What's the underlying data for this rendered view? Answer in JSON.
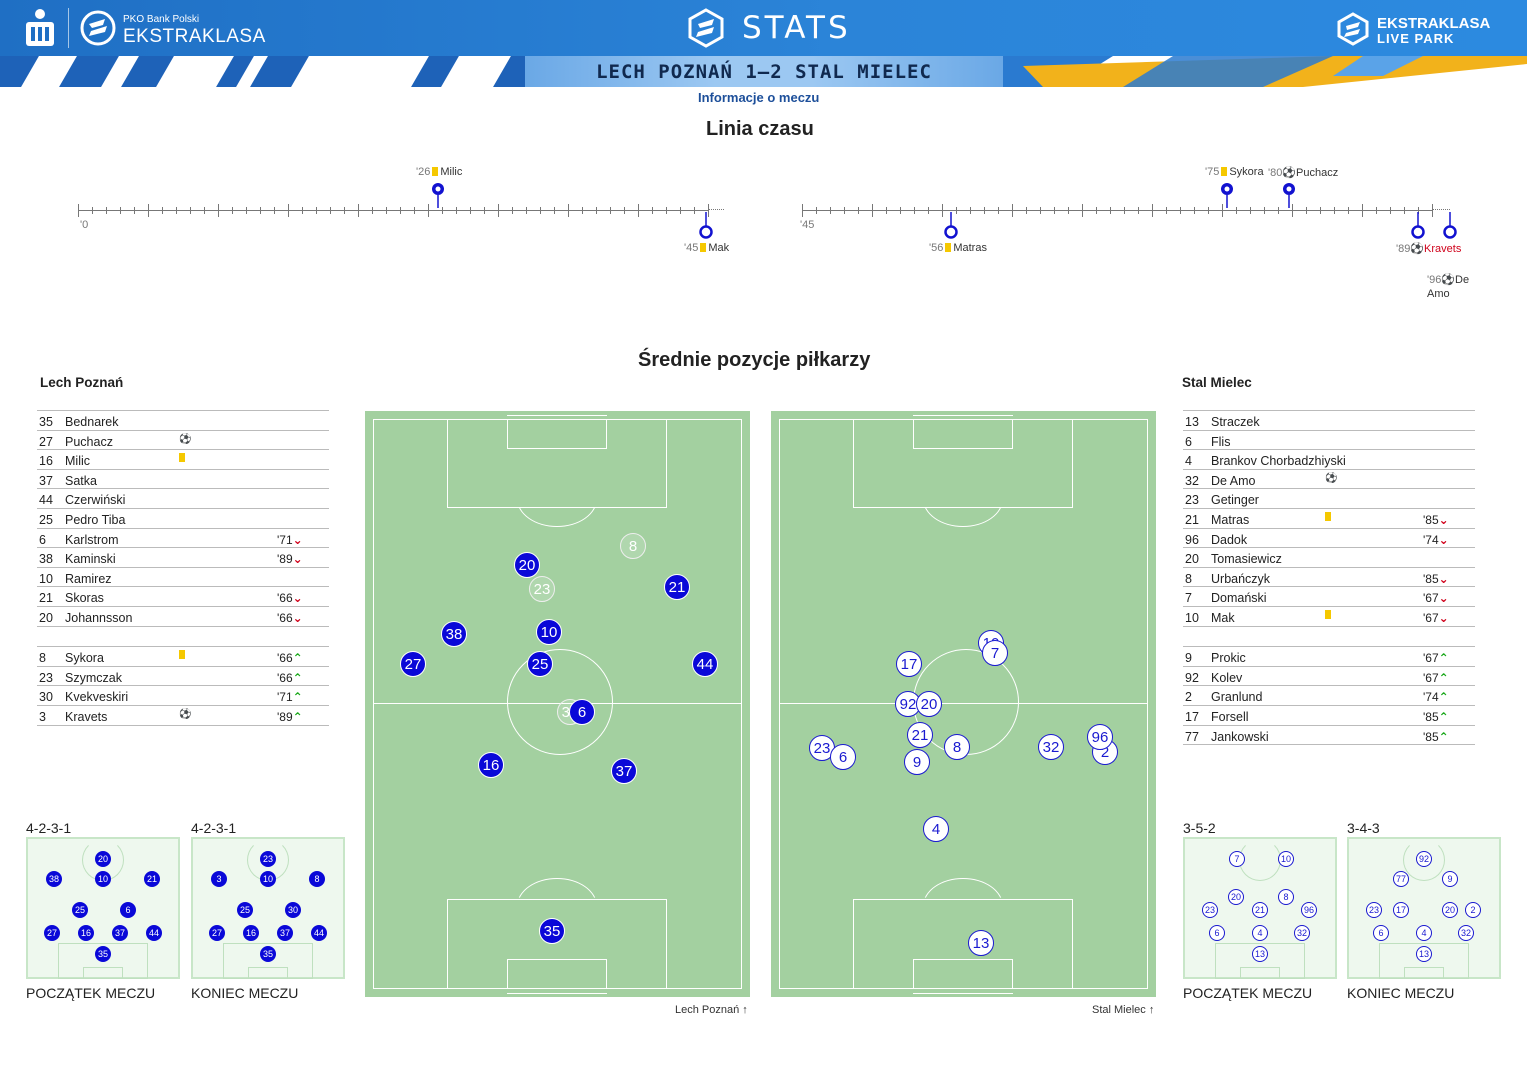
{
  "header": {
    "sponsor_small": "PKO Bank Polski",
    "league": "EKSTRAKLASA",
    "stats_title": "STATS",
    "right_logo_line1": "EKSTRAKLASA",
    "right_logo_line2": "LIVE PARK"
  },
  "match": {
    "score_title": "LECH POZNAŃ 1–2 STAL MIELEC",
    "info_link": "Informacje o meczu"
  },
  "timeline": {
    "title": "Linia czasu",
    "first_half_start": "'0",
    "second_half_start": "'45",
    "events": [
      {
        "minute": "'26",
        "player": "Milic",
        "type": "yellow",
        "side": "top"
      },
      {
        "minute": "'45",
        "player": "Mak",
        "type": "yellow",
        "side": "bottom"
      },
      {
        "minute": "'56",
        "player": "Matras",
        "type": "yellow",
        "side": "bottom"
      },
      {
        "minute": "'75",
        "player": "Sykora",
        "type": "yellow",
        "side": "top"
      },
      {
        "minute": "'80",
        "player": "Puchacz",
        "type": "goal",
        "side": "top"
      },
      {
        "minute": "'89",
        "player": "Kravets",
        "type": "owngoal",
        "side": "bottom"
      },
      {
        "minute": "'96",
        "player": "De Amo",
        "type": "goal",
        "side": "bottom"
      }
    ]
  },
  "positions_title": "Średnie pozycje piłkarzy",
  "home": {
    "name": "Lech Poznań",
    "starters": [
      {
        "num": "35",
        "name": "Bednarek",
        "icon": "",
        "sub": ""
      },
      {
        "num": "27",
        "name": "Puchacz",
        "icon": "goal",
        "sub": ""
      },
      {
        "num": "16",
        "name": "Milic",
        "icon": "yellow",
        "sub": ""
      },
      {
        "num": "37",
        "name": "Satka",
        "icon": "",
        "sub": ""
      },
      {
        "num": "44",
        "name": "Czerwiński",
        "icon": "",
        "sub": ""
      },
      {
        "num": "25",
        "name": "Pedro Tiba",
        "icon": "",
        "sub": ""
      },
      {
        "num": "6",
        "name": "Karlstrom",
        "icon": "",
        "sub": "'71",
        "dir": "down"
      },
      {
        "num": "38",
        "name": "Kaminski",
        "icon": "",
        "sub": "'89",
        "dir": "down"
      },
      {
        "num": "10",
        "name": "Ramirez",
        "icon": "",
        "sub": ""
      },
      {
        "num": "21",
        "name": "Skoras",
        "icon": "",
        "sub": "'66",
        "dir": "down"
      },
      {
        "num": "20",
        "name": "Johannsson",
        "icon": "",
        "sub": "'66",
        "dir": "down"
      }
    ],
    "subs": [
      {
        "num": "8",
        "name": "Sykora",
        "icon": "yellow",
        "sub": "'66",
        "dir": "up"
      },
      {
        "num": "23",
        "name": "Szymczak",
        "icon": "",
        "sub": "'66",
        "dir": "up"
      },
      {
        "num": "30",
        "name": "Kvekveskiri",
        "icon": "",
        "sub": "'71",
        "dir": "up"
      },
      {
        "num": "3",
        "name": "Kravets",
        "icon": "owngoal",
        "sub": "'89",
        "dir": "up"
      }
    ],
    "formation_start": "4-2-3-1",
    "formation_end": "4-2-3-1",
    "pitch_label": "Lech Poznań"
  },
  "away": {
    "name": "Stal Mielec",
    "starters": [
      {
        "num": "13",
        "name": "Straczek",
        "icon": "",
        "sub": ""
      },
      {
        "num": "6",
        "name": "Flis",
        "icon": "",
        "sub": ""
      },
      {
        "num": "4",
        "name": "Brankov Chorbadzhiyski",
        "icon": "",
        "sub": ""
      },
      {
        "num": "32",
        "name": "De Amo",
        "icon": "goal",
        "sub": ""
      },
      {
        "num": "23",
        "name": "Getinger",
        "icon": "",
        "sub": ""
      },
      {
        "num": "21",
        "name": "Matras",
        "icon": "yellow",
        "sub": "'85",
        "dir": "down"
      },
      {
        "num": "96",
        "name": "Dadok",
        "icon": "",
        "sub": "'74",
        "dir": "down"
      },
      {
        "num": "20",
        "name": "Tomasiewicz",
        "icon": "",
        "sub": ""
      },
      {
        "num": "8",
        "name": "Urbańczyk",
        "icon": "",
        "sub": "'85",
        "dir": "down"
      },
      {
        "num": "7",
        "name": "Domański",
        "icon": "",
        "sub": "'67",
        "dir": "down"
      },
      {
        "num": "10",
        "name": "Mak",
        "icon": "yellow",
        "sub": "'67",
        "dir": "down"
      }
    ],
    "subs": [
      {
        "num": "9",
        "name": "Prokic",
        "icon": "",
        "sub": "'67",
        "dir": "up"
      },
      {
        "num": "92",
        "name": "Kolev",
        "icon": "",
        "sub": "'67",
        "dir": "up"
      },
      {
        "num": "2",
        "name": "Granlund",
        "icon": "",
        "sub": "'74",
        "dir": "up"
      },
      {
        "num": "17",
        "name": "Forsell",
        "icon": "",
        "sub": "'85",
        "dir": "up"
      },
      {
        "num": "77",
        "name": "Jankowski",
        "icon": "",
        "sub": "'85",
        "dir": "up"
      }
    ],
    "formation_start": "3-5-2",
    "formation_end": "3-4-3",
    "pitch_label": "Stal Mielec"
  },
  "mini_captions": {
    "start": "POCZĄTEK MECZU",
    "end": "KONIEC MECZU"
  },
  "colors": {
    "home_dot": "#0a08d8",
    "away_dot": "#ffffff",
    "pitch": "#a3d0a0",
    "header": "#2b84d8",
    "yellow_card": "#f5c800",
    "sub_out": "#d0021b",
    "sub_in": "#1aa81a"
  }
}
